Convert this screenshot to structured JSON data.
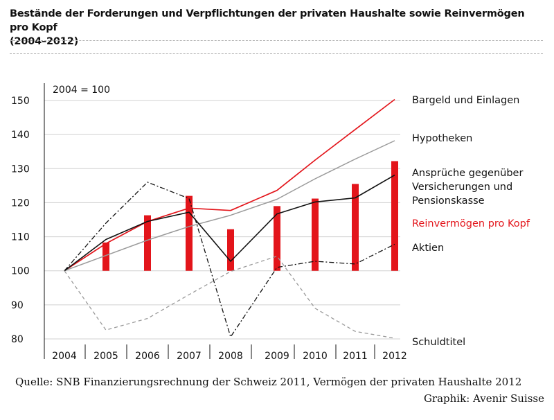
{
  "title": "Bestände der Forderungen und Verpflichtungen der privaten Haushalte sowie Reinvermögen pro Kopf",
  "subtitle": "(2004–2012)",
  "source": "Quelle: SNB Finanzierungsrechnung der Schweiz 2011,  Vermögen der privaten Haushalte 2012",
  "credit": "Graphik: Avenir Suisse",
  "colors": {
    "red": "#e3151b",
    "black": "#111111",
    "gray": "#9a9a9a",
    "grid": "#d0d0d0",
    "text": "#111111"
  },
  "chart_data": {
    "type": "line",
    "annotation": "2004 = 100",
    "ylim": [
      75,
      155
    ],
    "yticks": [
      80,
      90,
      100,
      110,
      120,
      130,
      140,
      150
    ],
    "grid": true,
    "categories": [
      "2004",
      "2005",
      "2006",
      "2007",
      "2008",
      "2009",
      "2010",
      "2011",
      "2012"
    ],
    "bars": {
      "name": "Reinvermögen pro Kopf",
      "color": "#e3151b",
      "values": [
        100,
        108.3,
        116.3,
        122,
        112.2,
        119,
        121.2,
        125.5,
        132.2
      ]
    },
    "series": [
      {
        "name": "Bargeld und Einlagen",
        "color": "#e3151b",
        "style": "solid",
        "values": [
          100,
          108,
          114.5,
          118.4,
          117.7,
          123.6,
          132.5,
          141.5,
          150.3
        ]
      },
      {
        "name": "Hypotheken",
        "color": "#9a9a9a",
        "style": "solid",
        "values": [
          100,
          104.5,
          109,
          113,
          116.3,
          121,
          127,
          132.8,
          138.2
        ]
      },
      {
        "name": "Ansprüche gegenüber Versicherungen und Pensionskasse",
        "color": "#111111",
        "style": "solid",
        "values": [
          100,
          109.2,
          114.5,
          117.2,
          102.8,
          116.7,
          120.2,
          121.4,
          128.1
        ]
      },
      {
        "name": "Aktien",
        "color": "#111111",
        "style": "dashdot",
        "values": [
          100,
          114,
          126,
          121.2,
          80.6,
          101,
          102.8,
          102,
          107.8
        ]
      },
      {
        "name": "Schuldtitel",
        "color": "#9a9a9a",
        "style": "dashed",
        "values": [
          100,
          82.6,
          86,
          93,
          99.8,
          104.3,
          89,
          82.2,
          80.2
        ]
      }
    ],
    "labels": [
      {
        "text": "Bargeld und Einlagen",
        "color": "#111111"
      },
      {
        "text": "Hypotheken",
        "color": "#111111"
      },
      {
        "text": "Ansprüche gegenüber",
        "color": "#111111"
      },
      {
        "text": "Versicherungen und",
        "color": "#111111"
      },
      {
        "text": "Pensionskasse",
        "color": "#111111"
      },
      {
        "text": "Reinvermögen pro Kopf",
        "color": "#e3151b"
      },
      {
        "text": "Aktien",
        "color": "#111111"
      },
      {
        "text": "Schuldtitel",
        "color": "#111111"
      }
    ]
  }
}
